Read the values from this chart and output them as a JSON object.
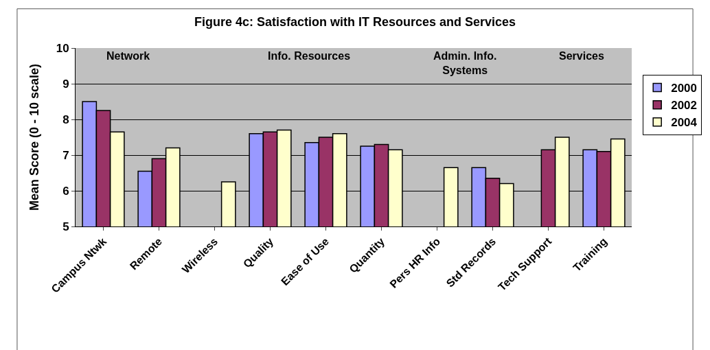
{
  "chart_data": {
    "type": "bar",
    "title": "Figure 4c: Satisfaction with IT Resources and Services",
    "ylabel": "Mean Score (0 - 10 scale)",
    "categories": [
      "Campus Ntwk",
      "Remote",
      "Wireless",
      "Quality",
      "Ease of Use",
      "Quantity",
      "Pers HR Info",
      "Std Records",
      "Tech Support",
      "Training"
    ],
    "series": [
      {
        "name": "2000",
        "color": "#9999ff",
        "values": [
          8.5,
          6.55,
          null,
          7.6,
          7.35,
          7.25,
          null,
          6.65,
          null,
          7.15
        ]
      },
      {
        "name": "2002",
        "color": "#993366",
        "values": [
          8.25,
          6.9,
          null,
          7.65,
          7.5,
          7.3,
          null,
          6.35,
          7.15,
          7.1
        ]
      },
      {
        "name": "2004",
        "color": "#ffffcc",
        "values": [
          7.65,
          7.2,
          6.25,
          7.7,
          7.6,
          7.15,
          6.65,
          6.2,
          7.5,
          7.45
        ]
      }
    ],
    "annotations": [
      "Network",
      "Info. Resources",
      "Admin. Info.\nSystems",
      "Services"
    ],
    "ylim": [
      5,
      10
    ],
    "yticks": [
      5,
      6,
      7,
      8,
      9,
      10
    ],
    "grid": "y",
    "legend": "right"
  }
}
